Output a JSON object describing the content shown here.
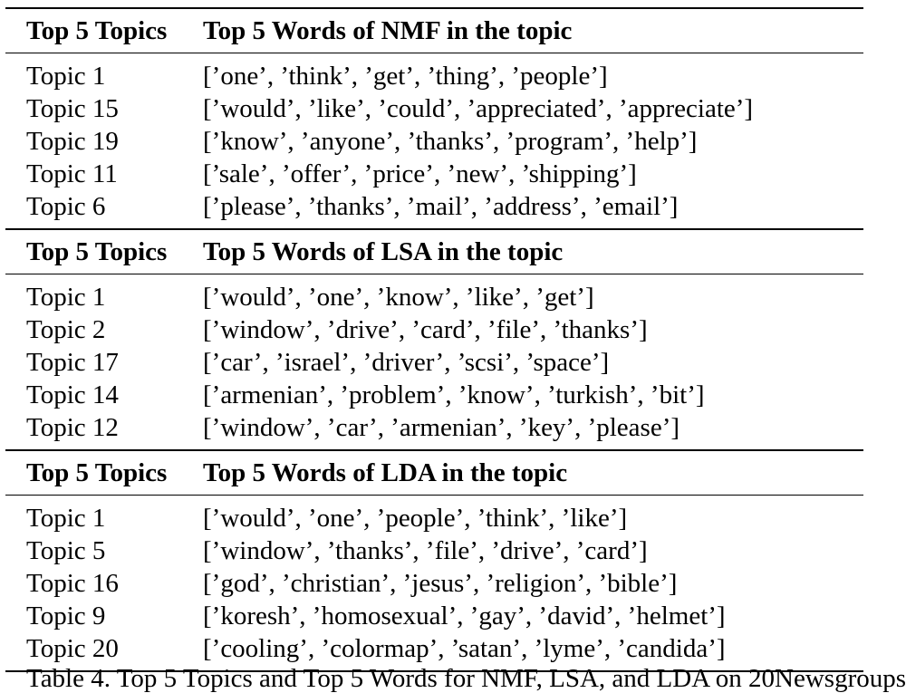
{
  "sections": [
    {
      "header": {
        "topics_label": "Top 5 Topics",
        "words_label": "Top 5 Words of NMF in the topic"
      },
      "rows": [
        {
          "topic": "Topic 1",
          "words": "[’one’, ’think’, ’get’, ’thing’, ’people’]"
        },
        {
          "topic": "Topic 15",
          "words": "[’would’, ’like’, ’could’, ’appreciated’, ’appreciate’]"
        },
        {
          "topic": "Topic 19",
          "words": "[’know’, ’anyone’, ’thanks’, ’program’, ’help’]"
        },
        {
          "topic": "Topic 11",
          "words": "[’sale’, ’offer’, ’price’, ’new’, ’shipping’]"
        },
        {
          "topic": "Topic 6",
          "words": "[’please’, ’thanks’, ’mail’, ’address’, ’email’]"
        }
      ]
    },
    {
      "header": {
        "topics_label": "Top 5 Topics",
        "words_label": "Top 5 Words of LSA in the topic"
      },
      "rows": [
        {
          "topic": "Topic 1",
          "words": "[’would’, ’one’, ’know’, ’like’, ’get’]"
        },
        {
          "topic": "Topic 2",
          "words": "[’window’, ’drive’, ’card’, ’file’, ’thanks’]"
        },
        {
          "topic": "Topic 17",
          "words": "[’car’, ’israel’, ’driver’, ’scsi’, ’space’]"
        },
        {
          "topic": "Topic 14",
          "words": "[’armenian’, ’problem’, ’know’, ’turkish’, ’bit’]"
        },
        {
          "topic": "Topic 12",
          "words": "[’window’, ’car’, ’armenian’, ’key’, ’please’]"
        }
      ]
    },
    {
      "header": {
        "topics_label": "Top 5 Topics",
        "words_label": "Top 5 Words of LDA in the topic"
      },
      "rows": [
        {
          "topic": "Topic 1",
          "words": "[’would’, ’one’, ’people’, ’think’, ’like’]"
        },
        {
          "topic": "Topic 5",
          "words": "[’window’, ’thanks’, ’file’, ’drive’, ’card’]"
        },
        {
          "topic": "Topic 16",
          "words": "[’god’, ’christian’, ’jesus’, ’religion’, ’bible’]"
        },
        {
          "topic": "Topic 9",
          "words": "[’koresh’, ’homosexual’, ’gay’, ’david’, ’helmet’]"
        },
        {
          "topic": "Topic 20",
          "words": "[’cooling’, ’colormap’, ’satan’, ’lyme’, ’candida’]"
        }
      ]
    }
  ],
  "caption_fragment": "Table 4. Top 5 Topics and Top 5 Words for NMF, LSA, and LDA on 20Newsgroups"
}
